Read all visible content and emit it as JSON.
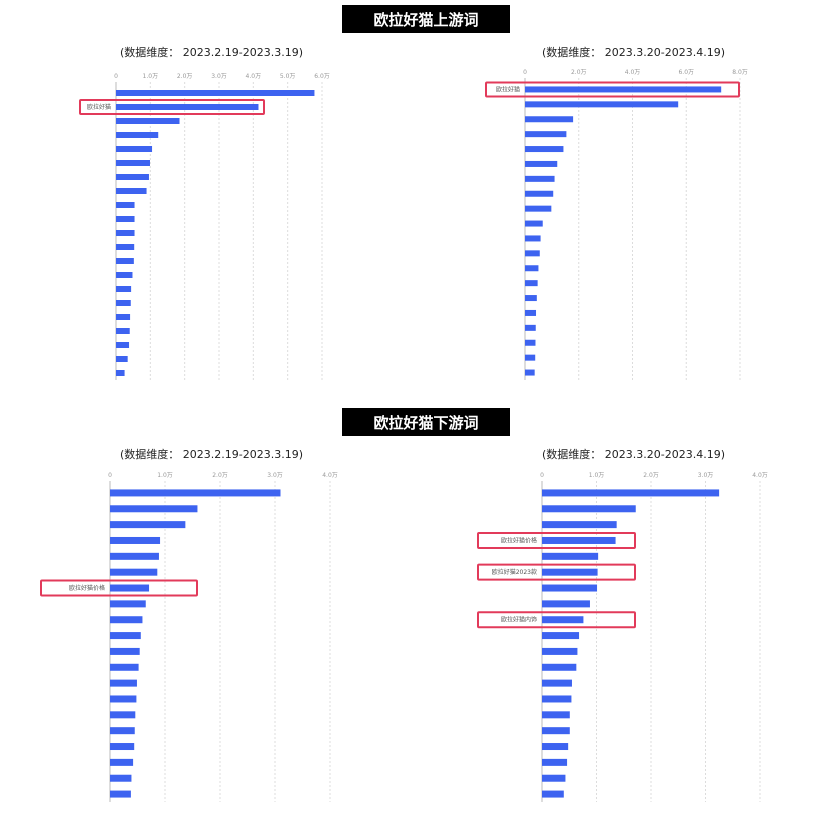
{
  "sections": [
    {
      "title": "欧拉好猫上游词"
    },
    {
      "title": "欧拉好猫下游词"
    }
  ],
  "colors": {
    "bar": "#3d63f0",
    "highlight": "#e23a5a",
    "banner_bg": "#000000"
  },
  "chart_data": [
    {
      "type": "bar",
      "orientation": "horizontal",
      "title": "(数据维度： 2023.2.19-2023.3.19)",
      "ticks": [
        "0",
        "1.0万",
        "2.0万",
        "3.0万",
        "4.0万",
        "5.0万",
        "6.0万"
      ],
      "xlim": [
        0,
        60000
      ],
      "values": [
        57800,
        41500,
        18500,
        12300,
        10500,
        9900,
        9600,
        8900,
        5400,
        5400,
        5400,
        5300,
        5200,
        4800,
        4400,
        4300,
        4100,
        4000,
        3800,
        3400,
        2500
      ],
      "labels": [
        "",
        "欧拉好猫",
        "",
        "",
        "",
        "",
        "",
        "",
        "",
        "",
        "",
        "",
        "",
        "",
        "",
        "",
        "",
        "",
        "",
        "",
        ""
      ],
      "highlight": [
        1
      ]
    },
    {
      "type": "bar",
      "orientation": "horizontal",
      "title": "(数据维度： 2023.3.20-2023.4.19)",
      "ticks": [
        "0",
        "2.0万",
        "4.0万",
        "6.0万",
        "8.0万"
      ],
      "xlim": [
        0,
        80000
      ],
      "values": [
        73000,
        57000,
        17900,
        15400,
        14300,
        12000,
        11000,
        10500,
        9800,
        6600,
        5800,
        5500,
        5000,
        4700,
        4400,
        4100,
        4000,
        3900,
        3800,
        3600
      ],
      "labels": [
        "欧拉好猫",
        "",
        "",
        "",
        "",
        "",
        "",
        "",
        "",
        "",
        "",
        "",
        "",
        "",
        "",
        "",
        "",
        "",
        "",
        ""
      ],
      "highlight": [
        0
      ]
    },
    {
      "type": "bar",
      "orientation": "horizontal",
      "title": "(数据维度： 2023.2.19-2023.3.19)",
      "ticks": [
        "0",
        "1.0万",
        "2.0万",
        "3.0万",
        "4.0万"
      ],
      "xlim": [
        0,
        40000
      ],
      "values": [
        31000,
        15900,
        13700,
        9100,
        8900,
        8600,
        7100,
        6500,
        5900,
        5600,
        5400,
        5200,
        4900,
        4800,
        4600,
        4500,
        4400,
        4200,
        3900,
        3800
      ],
      "labels": [
        "",
        "",
        "",
        "",
        "",
        "",
        "欧拉好猫价格",
        "",
        "",
        "",
        "",
        "",
        "",
        "",
        "",
        "",
        "",
        "",
        "",
        ""
      ],
      "highlight": [
        6
      ]
    },
    {
      "type": "bar",
      "orientation": "horizontal",
      "title": "(数据维度： 2023.3.20-2023.4.19)",
      "ticks": [
        "0",
        "1.0万",
        "2.0万",
        "3.0万",
        "4.0万"
      ],
      "xlim": [
        0,
        40000
      ],
      "values": [
        32500,
        17200,
        13700,
        13500,
        10300,
        10200,
        10100,
        8800,
        7600,
        6800,
        6500,
        6300,
        5500,
        5400,
        5100,
        5100,
        4800,
        4600,
        4300,
        4000
      ],
      "labels": [
        "",
        "",
        "",
        "欧拉好猫价格",
        "",
        "欧拉好猫2023款",
        "",
        "",
        "欧拉好猫内饰",
        "",
        "",
        "",
        "",
        "",
        "",
        "",
        "",
        "",
        "",
        ""
      ],
      "highlight": [
        3,
        5,
        8
      ]
    }
  ]
}
